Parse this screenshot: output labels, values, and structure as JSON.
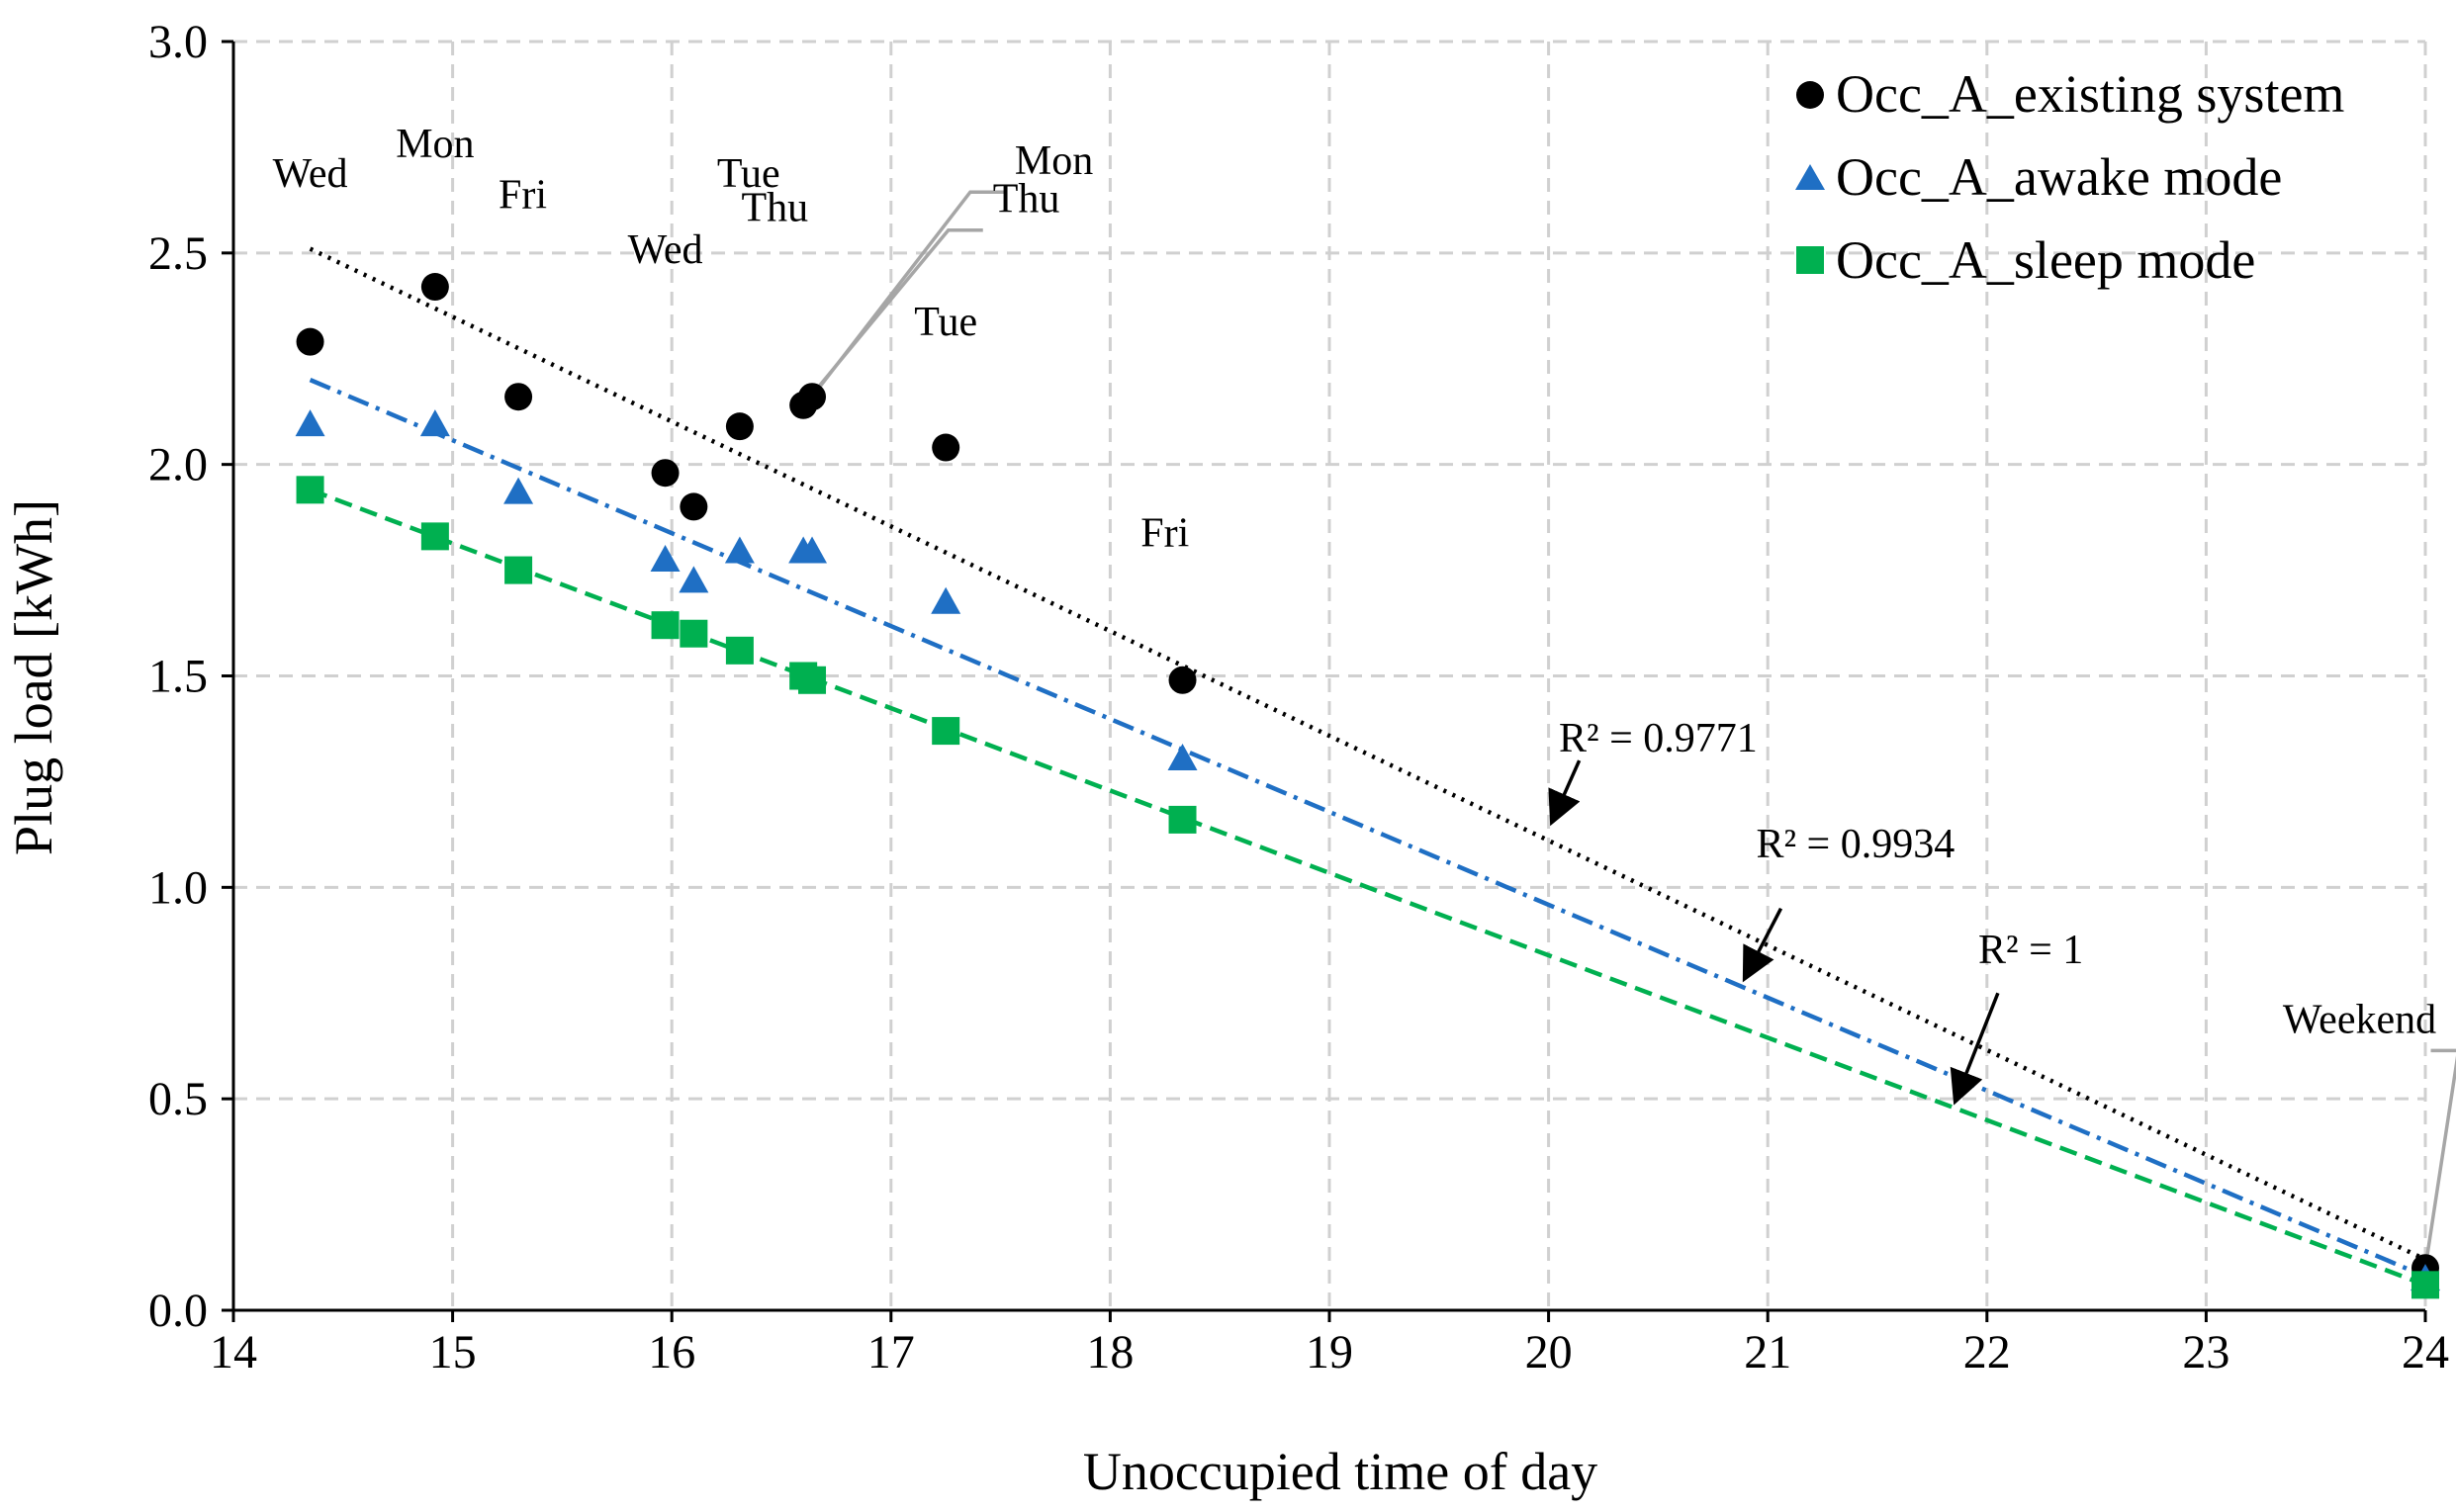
{
  "chart_data": {
    "type": "scatter",
    "title": "",
    "xlabel": "Unoccupied time of day",
    "ylabel": "Plug load [kWh]",
    "xlim": [
      14,
      24
    ],
    "ylim": [
      0.0,
      3.0
    ],
    "x_ticks": [
      "14",
      "15",
      "16",
      "17",
      "18",
      "19",
      "20",
      "21",
      "22",
      "23",
      "24"
    ],
    "y_ticks": [
      "0.0",
      "0.5",
      "1.0",
      "1.5",
      "2.0",
      "2.5",
      "3.0"
    ],
    "grid": true,
    "legend_position": "top-right",
    "series": [
      {
        "name": "Occ_A_existing system",
        "marker": "circle",
        "color": "#000000",
        "x": [
          14.35,
          14.92,
          15.3,
          15.97,
          16.1,
          16.31,
          16.6,
          16.64,
          17.25,
          18.33,
          24.0
        ],
        "y": [
          2.29,
          2.42,
          2.16,
          1.98,
          1.9,
          2.09,
          2.14,
          2.16,
          2.04,
          1.49,
          0.1
        ],
        "trend": {
          "x": [
            14.35,
            24.0
          ],
          "y": [
            2.51,
            0.12
          ],
          "style": "dotted",
          "color": "#000000"
        }
      },
      {
        "name": "Occ_A_awake mode",
        "marker": "triangle",
        "color": "#1f6fc4",
        "x": [
          14.35,
          14.92,
          15.3,
          15.97,
          16.1,
          16.31,
          16.6,
          16.64,
          17.25,
          18.33,
          24.0
        ],
        "y": [
          2.09,
          2.09,
          1.93,
          1.77,
          1.72,
          1.79,
          1.79,
          1.79,
          1.67,
          1.3,
          0.07
        ],
        "trend": {
          "x": [
            14.35,
            24.0
          ],
          "y": [
            2.2,
            0.08
          ],
          "style": "dash-dot",
          "color": "#1f6fc4"
        }
      },
      {
        "name": "Occ_A_sleep mode",
        "marker": "square",
        "color": "#00b050",
        "x": [
          14.35,
          14.92,
          15.3,
          15.97,
          16.1,
          16.31,
          16.6,
          16.64,
          17.25,
          18.33,
          24.0
        ],
        "y": [
          1.94,
          1.83,
          1.75,
          1.62,
          1.6,
          1.56,
          1.5,
          1.49,
          1.37,
          1.16,
          0.06
        ],
        "trend": {
          "x": [
            14.35,
            24.0
          ],
          "y": [
            1.94,
            0.06
          ],
          "style": "dashed",
          "color": "#00b050"
        }
      }
    ],
    "point_labels": [
      {
        "text": "Wed",
        "x": 14.35,
        "y": 2.29,
        "lx": 14.35,
        "ly": 2.6
      },
      {
        "text": "Mon",
        "x": 14.92,
        "y": 2.42,
        "lx": 14.92,
        "ly": 2.67
      },
      {
        "text": "Fri",
        "x": 15.3,
        "y": 2.16,
        "lx": 15.32,
        "ly": 2.55
      },
      {
        "text": "Wed",
        "x": 15.97,
        "y": 1.98,
        "lx": 15.97,
        "ly": 2.42
      },
      {
        "text": "Tue",
        "x": 16.1,
        "y": 1.9,
        "lx": 16.35,
        "ly": 2.6
      },
      {
        "text": "Thu",
        "x": 16.31,
        "y": 2.09,
        "lx": 16.47,
        "ly": 2.52
      },
      {
        "text": "Mon",
        "x": 16.64,
        "y": 2.16,
        "lx": 17.7,
        "ly": 2.63
      },
      {
        "text": "Thu",
        "x": 16.6,
        "y": 2.14,
        "lx": 17.6,
        "ly": 2.54
      },
      {
        "text": "Tue",
        "x": 17.25,
        "y": 2.04,
        "lx": 17.25,
        "ly": 2.25
      },
      {
        "text": "Fri",
        "x": 18.33,
        "y": 1.49,
        "lx": 18.25,
        "ly": 1.75
      },
      {
        "text": "Weekend",
        "x": 24.0,
        "y": 0.1,
        "lx": 23.7,
        "ly": 0.6
      }
    ],
    "r2_annotations": [
      {
        "text": "R² = 0.9771",
        "series": "Occ_A_existing system",
        "tx": 20.5,
        "ty": 1.34,
        "ax0": 20.14,
        "ay0": 1.3,
        "ax1": 20.02,
        "ay1": 1.16
      },
      {
        "text": "R² = 0.9934",
        "series": "Occ_A_awake mode",
        "tx": 21.4,
        "ty": 1.09,
        "ax0": 21.06,
        "ay0": 0.95,
        "ax1": 20.9,
        "ay1": 0.79
      },
      {
        "text": "R² = 1",
        "series": "Occ_A_sleep mode",
        "tx": 22.2,
        "ty": 0.84,
        "ax0": 22.05,
        "ay0": 0.75,
        "ax1": 21.86,
        "ay1": 0.5
      }
    ]
  }
}
